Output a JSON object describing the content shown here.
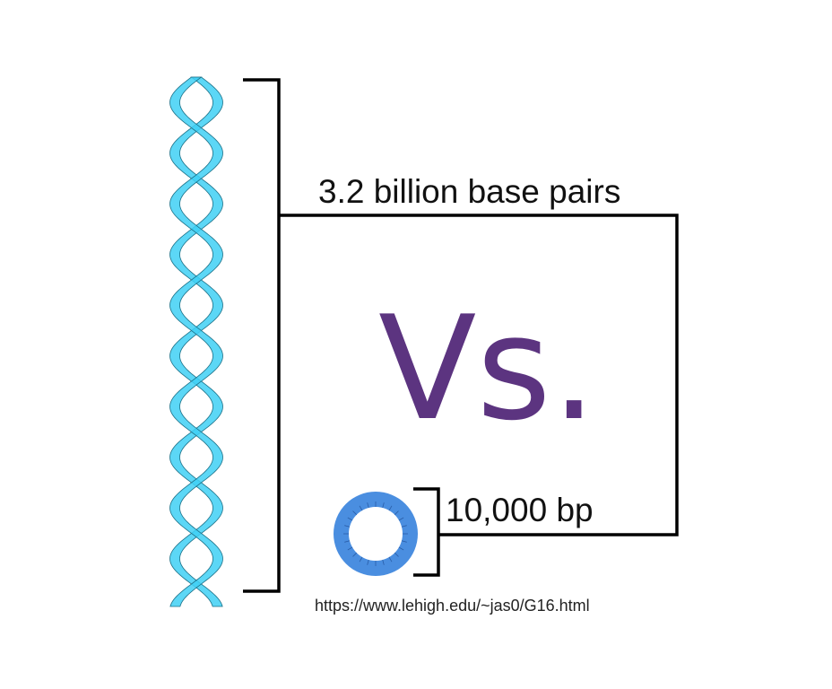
{
  "labels": {
    "genome_size": "3.2 billion base pairs",
    "versus": "Vs.",
    "plasmid_size": "10,000 bp",
    "source_url": "https://www.lehigh.edu/~jas0/G16.html"
  },
  "colors": {
    "helix_fill": "#3fd0f4",
    "helix_stroke": "#1a6f86",
    "plasmid_fill": "#4a8ee0",
    "plasmid_stroke": "#2a5ea8",
    "bracket": "#000000",
    "versus_text": "#5c3480"
  },
  "icons": {
    "helix": "dna-double-helix-icon",
    "plasmid": "circular-plasmid-icon"
  }
}
